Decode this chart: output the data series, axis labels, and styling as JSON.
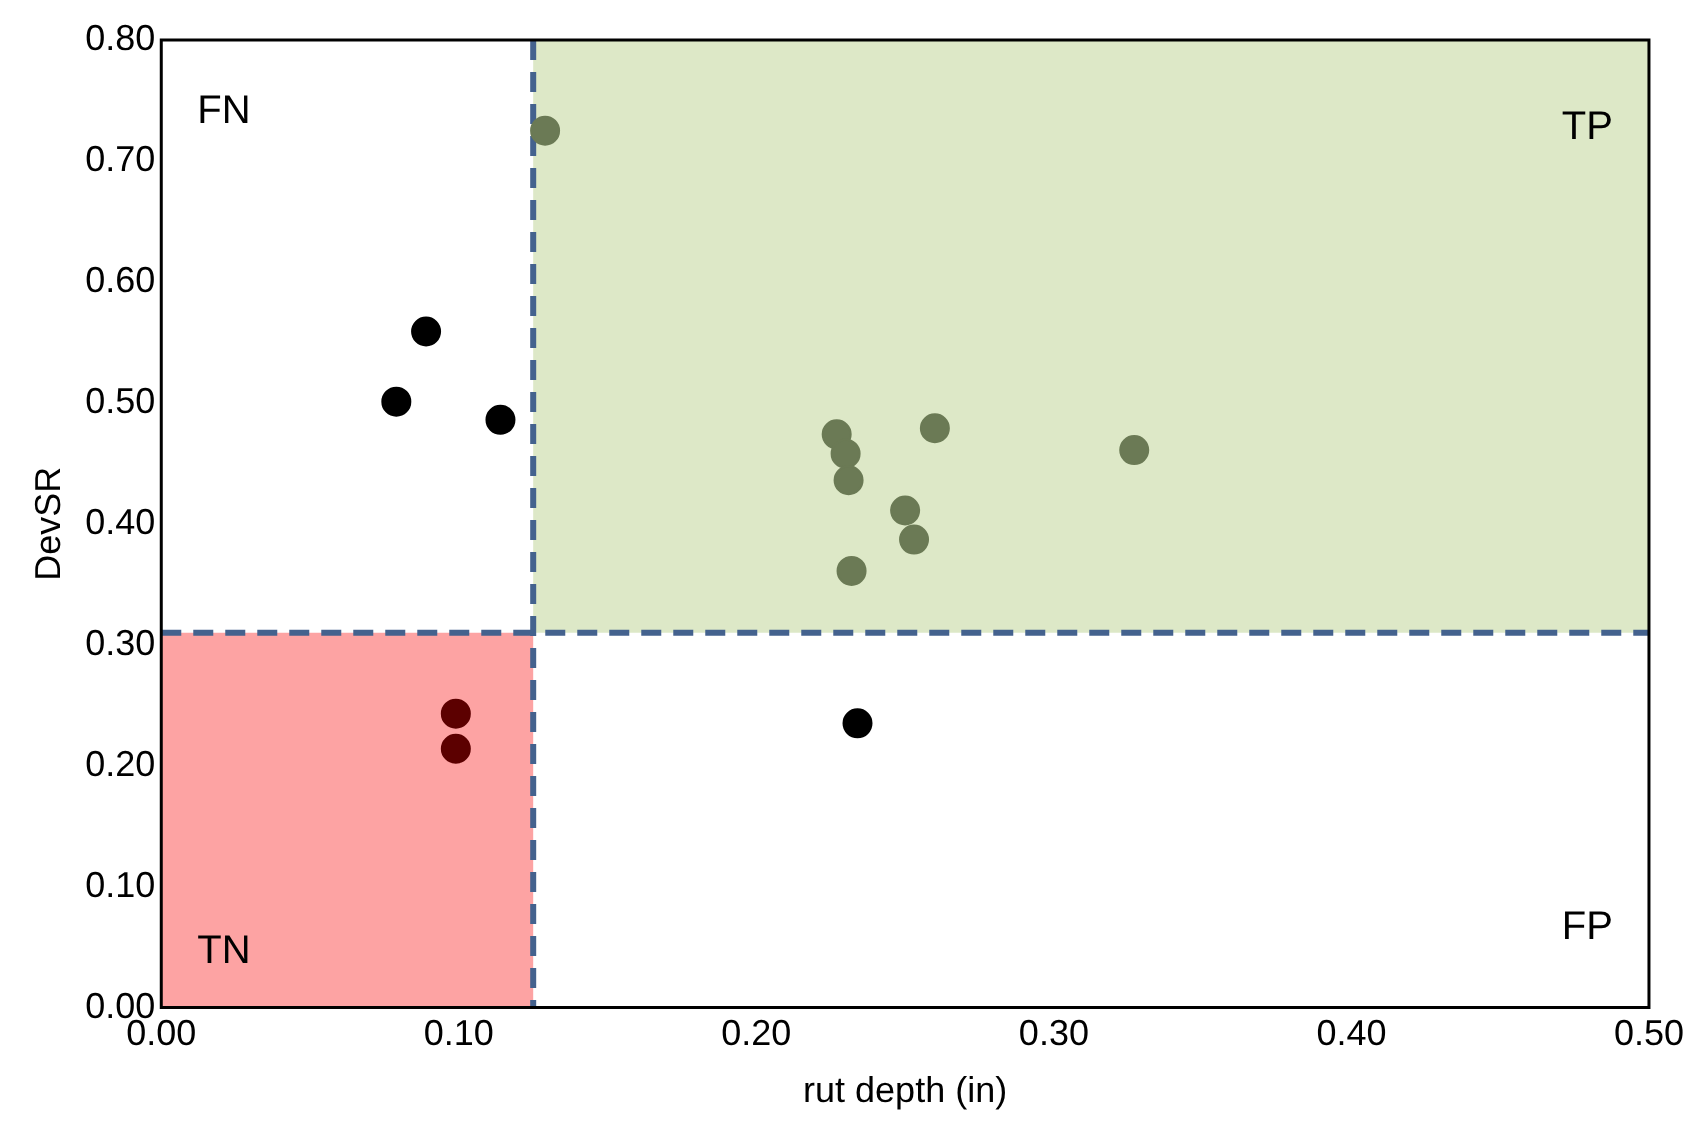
{
  "chart_data": {
    "type": "scatter",
    "xlabel": "rut depth (in)",
    "ylabel": "DevSR",
    "xlim": [
      0,
      0.5
    ],
    "ylim": [
      0,
      0.8
    ],
    "xticks": [
      {
        "value": 0,
        "label": "0.00"
      },
      {
        "value": 0.1,
        "label": "0.10"
      },
      {
        "value": 0.2,
        "label": "0.20"
      },
      {
        "value": 0.3,
        "label": "0.30"
      },
      {
        "value": 0.4,
        "label": "0.40"
      },
      {
        "value": 0.5,
        "label": "0.50"
      }
    ],
    "yticks": [
      {
        "value": 0,
        "label": "0.00"
      },
      {
        "value": 0.1,
        "label": "0.10"
      },
      {
        "value": 0.2,
        "label": "0.20"
      },
      {
        "value": 0.3,
        "label": "0.30"
      },
      {
        "value": 0.4,
        "label": "0.40"
      },
      {
        "value": 0.5,
        "label": "0.50"
      },
      {
        "value": 0.6,
        "label": "0.60"
      },
      {
        "value": 0.7,
        "label": "0.70"
      },
      {
        "value": 0.8,
        "label": "0.80"
      }
    ],
    "grid": false,
    "legend": false,
    "marker": "circle",
    "series": [
      {
        "color": "#000000",
        "x": [
          0.089,
          0.079,
          0.114,
          0.234
        ],
        "values": [
          0.559,
          0.501,
          0.486,
          0.235
        ]
      },
      {
        "color": "#6b7a55",
        "x": [
          0.129,
          0.227,
          0.23,
          0.231,
          0.26,
          0.25,
          0.253,
          0.232,
          0.327
        ],
        "values": [
          0.725,
          0.474,
          0.458,
          0.436,
          0.479,
          0.411,
          0.387,
          0.361,
          0.461
        ]
      },
      {
        "color": "#5c0000",
        "x": [
          0.099,
          0.099
        ],
        "values": [
          0.243,
          0.214
        ]
      }
    ],
    "bands": [
      {
        "axis": "x",
        "from": 0.125,
        "to": 0.5,
        "color": "#dde8c7"
      },
      {
        "axis": "y",
        "from": 0,
        "to": 0.31,
        "color": "#fda3a3"
      }
    ],
    "ref_lines": [
      {
        "axis": "x",
        "value": 0.125,
        "color": "#44628e",
        "line_style": "dashed"
      },
      {
        "axis": "y",
        "value": 0.31,
        "color": "#44628e",
        "line_style": "dashed"
      }
    ],
    "annotations": [
      "FN",
      "TP",
      "TN",
      "FP"
    ]
  }
}
